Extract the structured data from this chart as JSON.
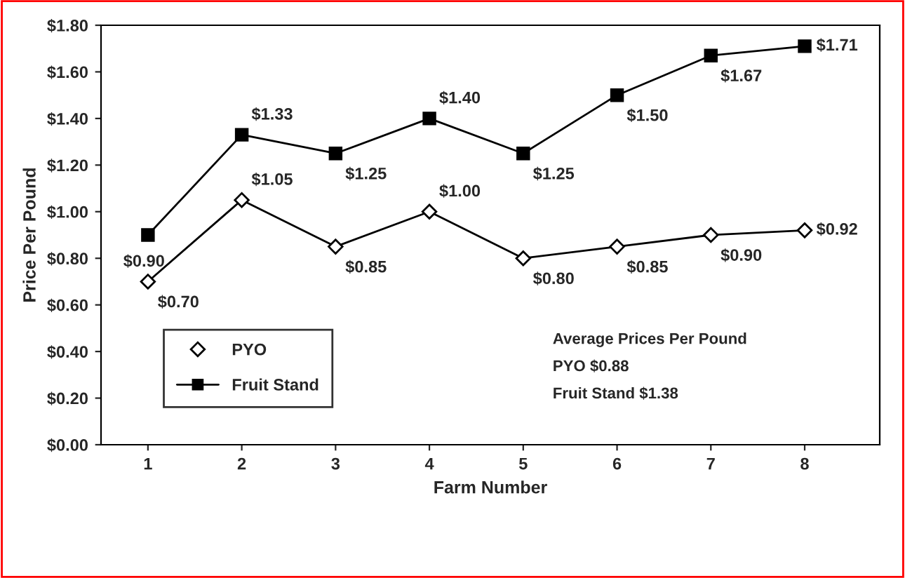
{
  "chart_data": {
    "type": "line",
    "xlabel": "Farm Number",
    "ylabel": "Price Per Pound",
    "categories": [
      "1",
      "2",
      "3",
      "4",
      "5",
      "6",
      "7",
      "8"
    ],
    "series": [
      {
        "name": "PYO",
        "color": "#000000",
        "marker": "diamond",
        "values": [
          0.7,
          1.05,
          0.85,
          1.0,
          0.8,
          0.85,
          0.9,
          0.92
        ],
        "value_labels": [
          "$0.70",
          "$1.05",
          "$0.85",
          "$1.00",
          "$0.80",
          "$0.85",
          "$0.90",
          "$0.92"
        ]
      },
      {
        "name": "Fruit Stand",
        "color": "#000000",
        "marker": "square",
        "values": [
          0.9,
          1.33,
          1.25,
          1.4,
          1.25,
          1.5,
          1.67,
          1.71
        ],
        "value_labels": [
          "$0.90",
          "$1.33",
          "$1.25",
          "$1.40",
          "$1.25",
          "$1.50",
          "$1.67",
          "$1.71"
        ]
      }
    ],
    "ylim": [
      0,
      1.8
    ],
    "yticks": [
      {
        "value": 0,
        "label": "$0.00"
      },
      {
        "value": 0.2,
        "label": "$0.20"
      },
      {
        "value": 0.4,
        "label": "$0.40"
      },
      {
        "value": 0.6,
        "label": "$0.60"
      },
      {
        "value": 0.8,
        "label": "$0.80"
      },
      {
        "value": 1.0,
        "label": "$1.00"
      },
      {
        "value": 1.2,
        "label": "$1.20"
      },
      {
        "value": 1.4,
        "label": "$1.40"
      },
      {
        "value": 1.6,
        "label": "$1.60"
      },
      {
        "value": 1.8,
        "label": "$1.80"
      }
    ],
    "annotations": [
      "Average Prices Per Pound",
      "PYO $0.88",
      "Fruit Stand $1.38"
    ],
    "legend": "bottom left",
    "grid": false,
    "line_style": "solid"
  }
}
